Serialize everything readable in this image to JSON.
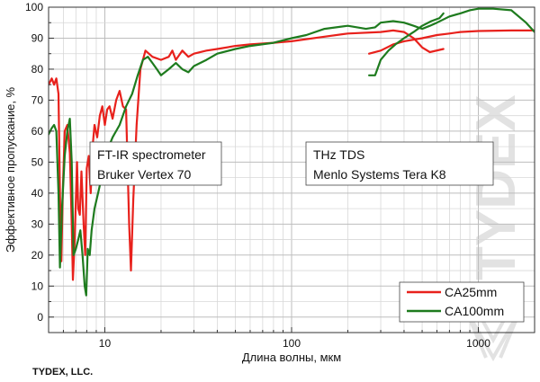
{
  "company": "TYDEX, LLC.",
  "watermark": "TYDEX",
  "chart_data": {
    "type": "line",
    "xscale": "log",
    "xlabel": "Длина волны, мкм",
    "ylabel": "Эффективное пропускание, %",
    "xlim": [
      5,
      2000
    ],
    "ylim": [
      -5,
      100
    ],
    "x_ticks": [
      10,
      100,
      1000
    ],
    "y_ticks": [
      0,
      10,
      20,
      30,
      40,
      50,
      60,
      70,
      80,
      90,
      100
    ],
    "grid": true,
    "legend_position": "bottom-right",
    "annotations": [
      {
        "lines": [
          "FT-IR spectrometer",
          "Bruker Vertex 70"
        ]
      },
      {
        "lines": [
          "THz TDS",
          "Menlo Systems Tera K8"
        ]
      }
    ],
    "series": [
      {
        "name": "CA25mm",
        "color": "#e8211c",
        "segments": [
          [
            [
              5.0,
              75
            ],
            [
              5.2,
              77
            ],
            [
              5.35,
              75
            ],
            [
              5.5,
              77
            ],
            [
              5.65,
              72
            ],
            [
              5.75,
              40
            ],
            [
              5.85,
              18
            ],
            [
              5.95,
              40
            ],
            [
              6.1,
              60
            ],
            [
              6.3,
              62
            ],
            [
              6.5,
              53
            ],
            [
              6.65,
              30
            ],
            [
              6.75,
              12
            ],
            [
              6.9,
              25
            ],
            [
              7.0,
              38
            ],
            [
              7.1,
              50
            ],
            [
              7.2,
              35
            ],
            [
              7.35,
              33
            ],
            [
              7.5,
              47
            ],
            [
              7.7,
              30
            ],
            [
              7.85,
              20
            ],
            [
              8.0,
              48
            ],
            [
              8.2,
              52
            ],
            [
              8.4,
              40
            ],
            [
              8.6,
              55
            ],
            [
              8.8,
              62
            ],
            [
              9.1,
              58
            ],
            [
              9.4,
              65
            ],
            [
              9.7,
              68
            ],
            [
              10.0,
              62
            ],
            [
              10.3,
              67
            ],
            [
              10.6,
              68
            ],
            [
              11.0,
              64
            ],
            [
              11.5,
              70
            ],
            [
              12.0,
              73
            ],
            [
              12.5,
              68
            ],
            [
              13.0,
              67
            ],
            [
              13.5,
              30
            ],
            [
              13.8,
              15
            ],
            [
              14.2,
              38
            ],
            [
              14.8,
              62
            ],
            [
              15.5,
              80
            ],
            [
              16.5,
              86
            ],
            [
              18,
              84
            ],
            [
              20,
              83
            ],
            [
              22,
              84
            ],
            [
              23,
              86
            ],
            [
              24,
              83
            ],
            [
              26,
              86
            ],
            [
              28,
              84
            ],
            [
              30,
              85
            ],
            [
              35,
              86
            ],
            [
              40,
              86.5
            ],
            [
              50,
              87.5
            ],
            [
              60,
              88
            ],
            [
              80,
              88.5
            ],
            [
              100,
              89
            ],
            [
              150,
              90.5
            ],
            [
              200,
              91.5
            ],
            [
              300,
              92
            ],
            [
              350,
              92.5
            ],
            [
              400,
              92
            ],
            [
              450,
              90
            ],
            [
              500,
              87
            ],
            [
              550,
              85.5
            ],
            [
              650,
              86.5
            ]
          ],
          [
            [
              260,
              85
            ],
            [
              300,
              86
            ],
            [
              350,
              88
            ],
            [
              400,
              89
            ],
            [
              500,
              90
            ],
            [
              600,
              91
            ],
            [
              700,
              91.5
            ],
            [
              800,
              92
            ],
            [
              1000,
              92.3
            ],
            [
              1500,
              92.5
            ],
            [
              2000,
              92.5
            ]
          ]
        ]
      },
      {
        "name": "CA100mm",
        "color": "#1e7b1e",
        "segments": [
          [
            [
              5.0,
              59
            ],
            [
              5.2,
              61
            ],
            [
              5.35,
              62
            ],
            [
              5.5,
              60
            ],
            [
              5.65,
              40
            ],
            [
              5.75,
              16
            ],
            [
              5.9,
              35
            ],
            [
              6.1,
              52
            ],
            [
              6.3,
              60
            ],
            [
              6.5,
              64
            ],
            [
              6.65,
              50
            ],
            [
              6.8,
              20
            ],
            [
              7.0,
              22
            ],
            [
              7.2,
              25
            ],
            [
              7.4,
              28
            ],
            [
              7.6,
              20
            ],
            [
              7.8,
              10
            ],
            [
              7.95,
              7
            ],
            [
              8.1,
              22
            ],
            [
              8.3,
              20
            ],
            [
              8.5,
              28
            ],
            [
              8.8,
              35
            ],
            [
              9.2,
              40
            ],
            [
              9.6,
              45
            ],
            [
              10.0,
              50
            ],
            [
              10.5,
              55
            ],
            [
              11.0,
              58
            ],
            [
              12.0,
              62
            ],
            [
              13.0,
              68
            ],
            [
              14.0,
              72
            ],
            [
              15.0,
              78
            ],
            [
              16.0,
              83
            ],
            [
              17.0,
              84
            ],
            [
              18.0,
              82
            ],
            [
              19.0,
              80
            ],
            [
              20.0,
              78
            ],
            [
              22,
              80
            ],
            [
              24,
              82
            ],
            [
              26,
              80
            ],
            [
              28,
              79
            ],
            [
              30,
              81
            ],
            [
              35,
              83
            ],
            [
              40,
              85
            ],
            [
              50,
              86.5
            ],
            [
              60,
              87.5
            ],
            [
              80,
              88.5
            ],
            [
              100,
              90
            ],
            [
              120,
              91
            ],
            [
              150,
              93
            ],
            [
              200,
              94
            ],
            [
              250,
              93
            ],
            [
              280,
              93.5
            ],
            [
              300,
              95
            ],
            [
              350,
              95.5
            ],
            [
              400,
              95
            ],
            [
              450,
              94
            ],
            [
              500,
              93
            ],
            [
              550,
              94
            ],
            [
              600,
              95
            ],
            [
              700,
              97
            ],
            [
              800,
              98
            ],
            [
              900,
              99
            ],
            [
              1000,
              99.5
            ],
            [
              1200,
              99.5
            ],
            [
              1500,
              99
            ],
            [
              1800,
              95
            ],
            [
              2000,
              92
            ]
          ],
          [
            [
              260,
              78
            ],
            [
              280,
              78
            ],
            [
              300,
              83
            ],
            [
              330,
              86
            ],
            [
              360,
              88
            ],
            [
              400,
              90
            ],
            [
              450,
              92
            ],
            [
              500,
              94
            ],
            [
              560,
              95.5
            ],
            [
              620,
              96.5
            ],
            [
              650,
              98
            ]
          ]
        ]
      }
    ]
  }
}
